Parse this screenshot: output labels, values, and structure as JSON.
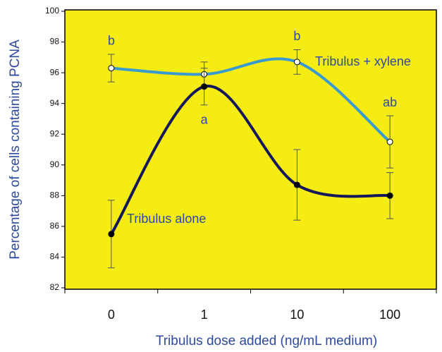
{
  "chart_data": {
    "type": "line",
    "xlabel": "Tribulus dose added (ng/mL medium)",
    "ylabel": "Percentage of cells containing PCNA",
    "categories": [
      "0",
      "1",
      "10",
      "100"
    ],
    "series": [
      {
        "name": "Tribulus + xylene",
        "color": "#3a9ad0",
        "marker_fill": "#ffffff",
        "values": [
          96.3,
          95.9,
          96.7,
          91.5
        ],
        "errors": [
          0.9,
          0.8,
          0.8,
          1.7
        ]
      },
      {
        "name": "Tribulus alone",
        "color": "#16175a",
        "marker_fill": "#000000",
        "values": [
          85.5,
          95.1,
          88.7,
          88.0
        ],
        "errors": [
          2.2,
          1.2,
          2.3,
          1.5
        ]
      }
    ],
    "annotations": [
      "b",
      "a",
      "b",
      "ab"
    ],
    "ylim": [
      82,
      100
    ],
    "yticks": [
      82,
      84,
      86,
      88,
      90,
      92,
      94,
      96,
      98,
      100
    ],
    "background": "#f4ec12"
  }
}
